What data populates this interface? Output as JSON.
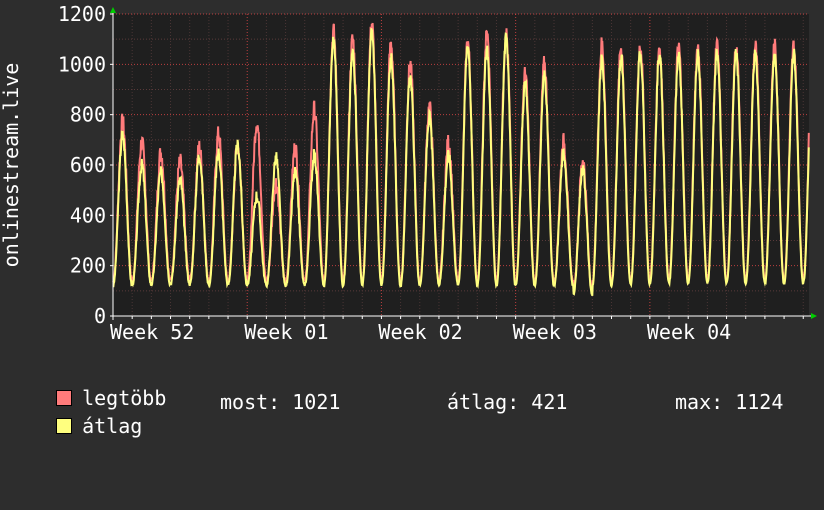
{
  "colors": {
    "background": "#2d2d2d",
    "plot_area": "#1f1f1f",
    "grid_major": "#ff4d4d",
    "axis": "#ffffff",
    "arrow": "#00cc00",
    "max_series": "#ff7b7b",
    "avg_series": "#ffff7f"
  },
  "chart_data": {
    "type": "line",
    "ylabel": "onlinestream.live",
    "ylim": [
      0,
      1200
    ],
    "yticks": [
      0,
      200,
      400,
      600,
      800,
      1000,
      1200
    ],
    "x_range": [
      0,
      36.3
    ],
    "xtick_labels": [
      {
        "x": 0,
        "label": "Week 52"
      },
      {
        "x": 7,
        "label": "Week 01"
      },
      {
        "x": 14,
        "label": "Week 02"
      },
      {
        "x": 21,
        "label": "Week 03"
      },
      {
        "x": 28,
        "label": "Week 04"
      }
    ],
    "grid": true,
    "x_unit": "days since start of Week 52",
    "daily_avg_peaks": [
      720,
      600,
      570,
      540,
      640,
      650,
      680,
      480,
      630,
      570,
      640,
      1100,
      1050,
      1130,
      1030,
      950,
      790,
      640,
      1080,
      1060,
      1100,
      920,
      960,
      650,
      590,
      1020,
      1030,
      1050,
      1040
    ],
    "daily_avg_troughs": [
      120,
      125,
      125,
      130,
      125,
      125,
      125,
      125,
      120,
      120,
      125,
      120,
      125,
      125,
      120,
      120,
      125,
      125,
      125,
      125,
      120,
      120,
      120,
      120,
      85,
      120,
      125,
      125,
      130
    ],
    "daily_max_peaks": [
      770,
      690,
      650,
      610,
      670,
      720,
      680,
      770,
      530,
      670,
      820,
      1130,
      1100,
      1160,
      1080,
      1000,
      830,
      690,
      1090,
      1120,
      1120,
      960,
      1000,
      690,
      620,
      1080,
      1070,
      1080,
      1070
    ],
    "series": [
      {
        "name": "legtöbb",
        "color": "#ff7b7b"
      },
      {
        "name": "átlag",
        "color": "#ffff7f"
      }
    ]
  },
  "legend": {
    "max_label": "legtöbb",
    "avg_label": "átlag",
    "stats": {
      "now": "most: 1021",
      "avg": "átlag: 421",
      "max": "max: 1124"
    }
  }
}
